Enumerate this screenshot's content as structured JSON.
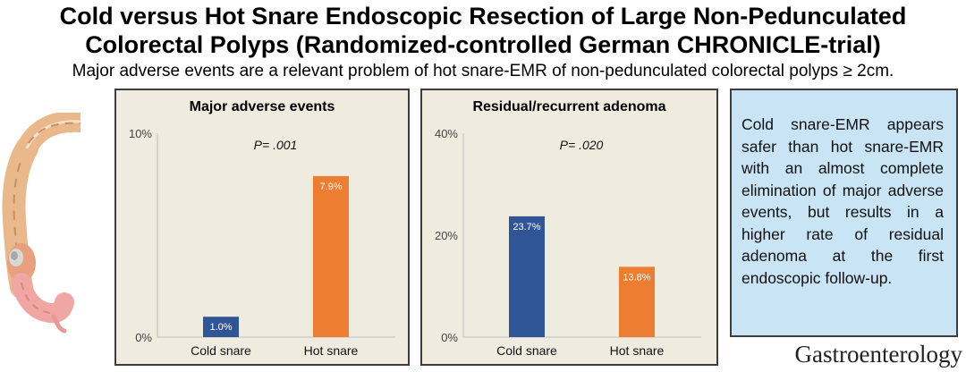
{
  "header": {
    "title_line1": "Cold versus Hot Snare Endoscopic Resection of Large Non-Pedunculated",
    "title_line2": "Colorectal Polyps (Randomized-controlled German CHRONICLE-trial)",
    "subtitle": "Major adverse events are a relevant problem of hot snare-EMR of non-pedunculated colorectal polyps ≥ 2cm."
  },
  "illustration": {
    "icon": "colon-anatomy-icon"
  },
  "colors": {
    "cold_snare": "#2f5597",
    "hot_snare": "#ed7d31",
    "panel_background": "#efebdf",
    "conclusion_background": "#c9e4f5"
  },
  "chart_data": [
    {
      "type": "bar",
      "title": "Major adverse events",
      "categories": [
        "Cold snare",
        "Hot snare"
      ],
      "values": [
        1.0,
        7.9
      ],
      "value_labels": [
        "1.0%",
        "7.9%"
      ],
      "ylim": [
        0,
        10
      ],
      "yticks": [
        "0%",
        "10%"
      ],
      "annotation": "P= .001",
      "grid": false
    },
    {
      "type": "bar",
      "title": "Residual/recurrent adenoma",
      "categories": [
        "Cold snare",
        "Hot snare"
      ],
      "values": [
        23.7,
        13.8
      ],
      "value_labels": [
        "23.7%",
        "13.8%"
      ],
      "ylim": [
        0,
        40
      ],
      "yticks": [
        "0%",
        "20%",
        "40%"
      ],
      "annotation": "P= .020",
      "grid": false
    }
  ],
  "conclusion": {
    "text": "Cold snare-EMR appears safer than hot snare-EMR with an almost complete elimination of major adverse events, but results in a higher rate of residual adenoma at the first endoscopic follow-up."
  },
  "journal": "Gastroenterology"
}
